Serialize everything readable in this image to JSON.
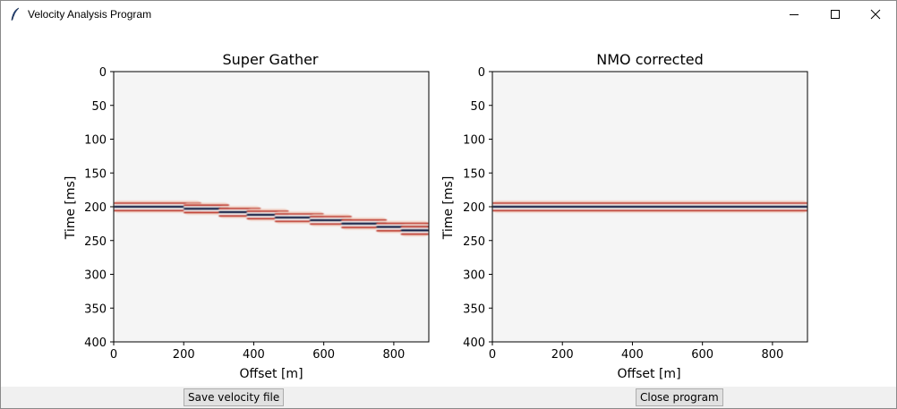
{
  "window": {
    "title": "Velocity Analysis Program",
    "controls": {
      "minimize_icon": "minimize-icon",
      "maximize_icon": "maximize-icon",
      "close_icon": "close-icon"
    }
  },
  "plots": [
    {
      "title": "Super Gather",
      "xlabel": "Offset [m]",
      "ylabel": "Time [ms]",
      "x_ticks": [
        "0",
        "200",
        "400",
        "600",
        "800"
      ],
      "y_ticks": [
        "0",
        "50",
        "100",
        "150",
        "200",
        "250",
        "300",
        "350",
        "400"
      ]
    },
    {
      "title": "NMO corrected",
      "xlabel": "Offset [m]",
      "ylabel": "Time [ms]",
      "x_ticks": [
        "0",
        "200",
        "400",
        "600",
        "800"
      ],
      "y_ticks": [
        "0",
        "50",
        "100",
        "150",
        "200",
        "250",
        "300",
        "350",
        "400"
      ]
    }
  ],
  "buttons": {
    "save": "Save velocity file",
    "close": "Close program"
  },
  "chart_data": [
    {
      "type": "heatmap",
      "title": "Super Gather",
      "xlabel": "Offset [m]",
      "ylabel": "Time [ms]",
      "xlim": [
        0,
        900
      ],
      "ylim": [
        400,
        0
      ],
      "colormap": "RdBu",
      "events": [
        {
          "x_start": 0,
          "x_end": 250,
          "t": 200
        },
        {
          "x_start": 200,
          "x_end": 330,
          "t": 203
        },
        {
          "x_start": 300,
          "x_end": 420,
          "t": 208
        },
        {
          "x_start": 380,
          "x_end": 500,
          "t": 212
        },
        {
          "x_start": 460,
          "x_end": 600,
          "t": 216
        },
        {
          "x_start": 560,
          "x_end": 680,
          "t": 220
        },
        {
          "x_start": 650,
          "x_end": 780,
          "t": 225
        },
        {
          "x_start": 750,
          "x_end": 900,
          "t": 230
        },
        {
          "x_start": 820,
          "x_end": 900,
          "t": 235
        }
      ]
    },
    {
      "type": "heatmap",
      "title": "NMO corrected",
      "xlabel": "Offset [m]",
      "ylabel": "Time [ms]",
      "xlim": [
        0,
        900
      ],
      "ylim": [
        400,
        0
      ],
      "colormap": "RdBu",
      "events": [
        {
          "x_start": 0,
          "x_end": 900,
          "t": 200
        }
      ]
    }
  ]
}
